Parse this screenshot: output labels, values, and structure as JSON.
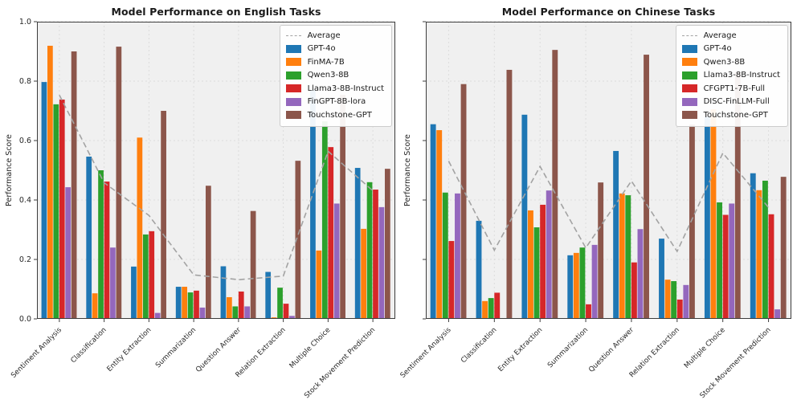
{
  "figure": {
    "background": "#ffffff",
    "plot_background": "#f0f0f0",
    "grid_color": "#dcdcdc",
    "spine_color": "#3c3c3c",
    "text_color": "#262626",
    "legend_border_color": "#cccccc",
    "average_dash_color": "#a3a3a3"
  },
  "chart_data": [
    {
      "type": "bar",
      "title": "Model Performance on English Tasks",
      "xlabel": "",
      "ylabel": "Performance Score",
      "ylim": [
        0.0,
        1.0
      ],
      "ytick_values": [
        0.0,
        0.2,
        0.4,
        0.6,
        0.8,
        1.0
      ],
      "ytick_labels": [
        "0.0",
        "0.2",
        "0.4",
        "0.6",
        "0.8",
        "1.0"
      ],
      "y_axis_has_labels": true,
      "grid": true,
      "legend_position": "upper right",
      "categories": [
        "Sentiment Analysis",
        "Classification",
        "Entity Extraction",
        "Summarization",
        "Question Answer",
        "Relation Extraction",
        "Multiple Choice",
        "Stock Movement Prediction"
      ],
      "series": [
        {
          "name": "GPT-4o",
          "color": "#1f77b4",
          "values": [
            0.797,
            0.546,
            0.176,
            0.108,
            0.177,
            0.158,
            0.77,
            0.508
          ]
        },
        {
          "name": "FinMA-7B",
          "color": "#ff7f0e",
          "values": [
            0.919,
            0.086,
            0.61,
            0.108,
            0.073,
            0.005,
            0.23,
            0.303
          ]
        },
        {
          "name": "Qwen3-8B",
          "color": "#2ca02c",
          "values": [
            0.722,
            0.5,
            0.284,
            0.089,
            0.042,
            0.105,
            0.665,
            0.46
          ]
        },
        {
          "name": "Llama3-8B-Instruct",
          "color": "#d62728",
          "values": [
            0.738,
            0.462,
            0.295,
            0.095,
            0.092,
            0.051,
            0.578,
            0.435
          ]
        },
        {
          "name": "FinGPT-8B-lora",
          "color": "#9467bd",
          "values": [
            0.443,
            0.24,
            0.02,
            0.038,
            0.042,
            0.01,
            0.388,
            0.376
          ]
        },
        {
          "name": "Touchstone-GPT",
          "color": "#8c564b",
          "values": [
            0.9,
            0.916,
            0.7,
            0.448,
            0.363,
            0.532,
            0.754,
            0.505
          ]
        }
      ],
      "average_line": {
        "label": "Average",
        "color": "#a3a3a3",
        "style": "dashed",
        "values": [
          0.753,
          0.458,
          0.348,
          0.148,
          0.132,
          0.144,
          0.564,
          0.431
        ]
      }
    },
    {
      "type": "bar",
      "title": "Model Performance on Chinese Tasks",
      "xlabel": "",
      "ylabel": "Performance Score",
      "ylim": [
        0.0,
        1.0
      ],
      "ytick_values": [
        0.0,
        0.2,
        0.4,
        0.6,
        0.8,
        1.0
      ],
      "ytick_labels": [],
      "y_axis_has_labels": false,
      "grid": true,
      "legend_position": "upper right",
      "categories": [
        "Sentiment Analysis",
        "Classification",
        "Entity Extraction",
        "Summarization",
        "Question Answer",
        "Relation Extraction",
        "Multiple Choice",
        "Stock Movement Prediction"
      ],
      "series": [
        {
          "name": "GPT-4o",
          "color": "#1f77b4",
          "values": [
            0.655,
            0.33,
            0.687,
            0.214,
            0.565,
            0.27,
            0.68,
            0.49
          ]
        },
        {
          "name": "Qwen3-8B",
          "color": "#ff7f0e",
          "values": [
            0.635,
            0.06,
            0.365,
            0.222,
            0.422,
            0.132,
            0.705,
            0.433
          ]
        },
        {
          "name": "Llama3-8B-Instruct",
          "color": "#2ca02c",
          "values": [
            0.425,
            0.07,
            0.308,
            0.24,
            0.416,
            0.127,
            0.392,
            0.465
          ]
        },
        {
          "name": "CFGPT1-7B-Full",
          "color": "#d62728",
          "values": [
            0.262,
            0.088,
            0.384,
            0.049,
            0.19,
            0.065,
            0.35,
            0.352
          ]
        },
        {
          "name": "DISC-FinLLM-Full",
          "color": "#9467bd",
          "values": [
            0.422,
            0.0,
            0.432,
            0.249,
            0.302,
            0.114,
            0.388,
            0.032
          ]
        },
        {
          "name": "Touchstone-GPT",
          "color": "#8c564b",
          "values": [
            0.79,
            0.838,
            0.905,
            0.459,
            0.889,
            0.654,
            0.831,
            0.478
          ]
        }
      ],
      "average_line": {
        "label": "Average",
        "color": "#a3a3a3",
        "style": "dashed",
        "values": [
          0.531,
          0.231,
          0.513,
          0.239,
          0.464,
          0.227,
          0.558,
          0.375
        ]
      }
    }
  ]
}
